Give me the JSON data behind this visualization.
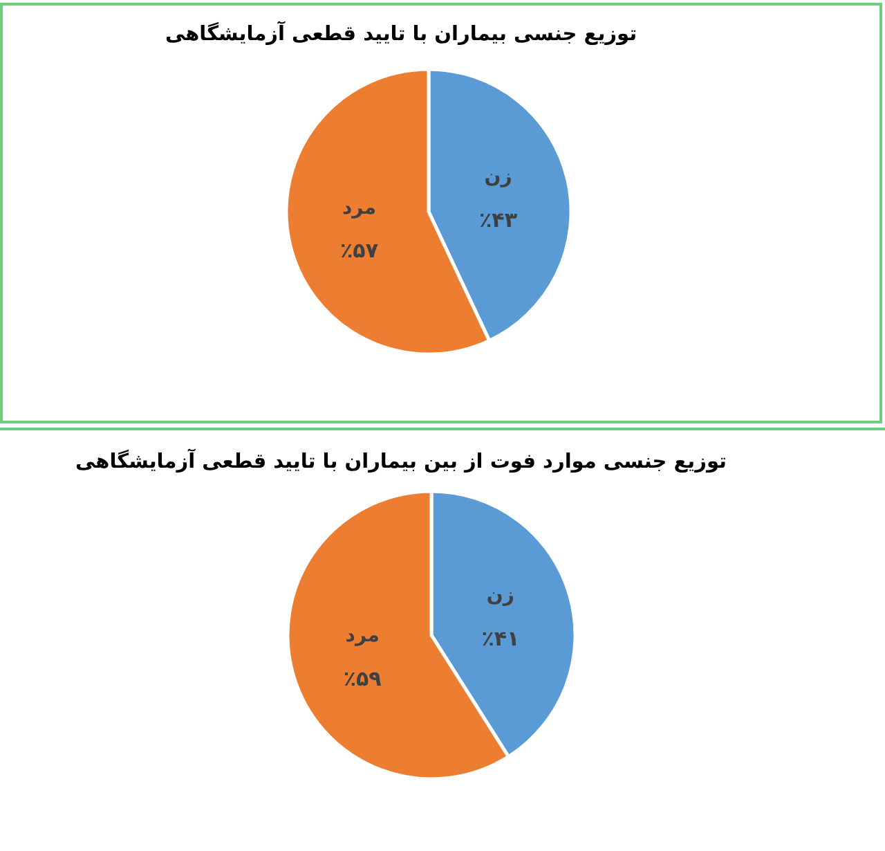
{
  "chart_data": [
    {
      "type": "pie",
      "title": "توزیع جنسی بیماران با تایید قطعی آزمایشگاهی",
      "categories": [
        "زن",
        "مرد"
      ],
      "values": [
        43,
        57
      ],
      "colors": [
        "#5b9bd5",
        "#ed7d31"
      ],
      "value_labels": [
        "٪۴۳",
        "٪۵۷"
      ]
    },
    {
      "type": "pie",
      "title": "توزیع جنسی موارد فوت از بین بیماران با تایید قطعی آزمایشگاهی",
      "categories": [
        "زن",
        "مرد"
      ],
      "values": [
        41,
        59
      ],
      "colors": [
        "#5b9bd5",
        "#ed7d31"
      ],
      "value_labels": [
        "٪۴۱",
        "٪۵۹"
      ]
    }
  ]
}
